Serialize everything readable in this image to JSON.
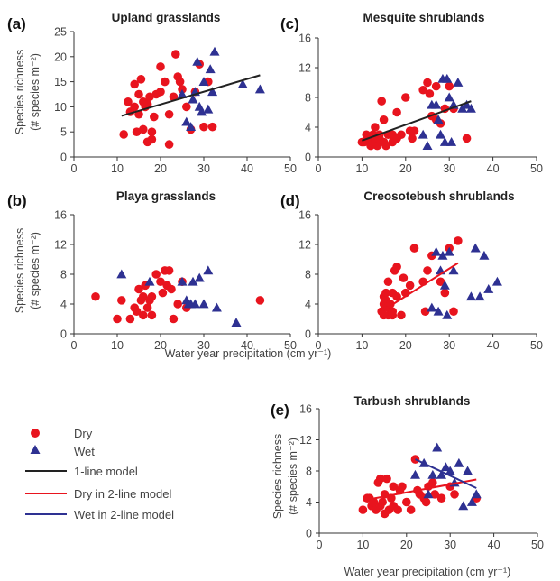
{
  "chart_data": [
    {
      "id": "a",
      "type": "scatter",
      "panel_label": "(a)",
      "title": "Upland grasslands",
      "xlim": [
        0,
        50
      ],
      "ylim": [
        0,
        25
      ],
      "xticks": [
        0,
        10,
        20,
        30,
        40,
        50
      ],
      "yticks": [
        0,
        5,
        10,
        15,
        20,
        25
      ],
      "ylabel_lines": [
        "Species richness",
        "(# species m⁻²)"
      ],
      "xlabel": "",
      "series": [
        {
          "name": "Dry",
          "marker": "circle",
          "color": "#e8141e",
          "x": [
            11.5,
            12.5,
            13,
            14,
            14,
            14.5,
            15,
            15,
            15.5,
            16,
            16,
            16.5,
            17,
            17,
            17.5,
            18,
            18,
            18.5,
            19,
            20,
            20,
            21,
            22,
            22,
            23,
            23.5,
            24,
            24.5,
            25,
            26,
            27,
            28,
            29,
            30,
            31,
            32
          ],
          "y": [
            4.5,
            11,
            9,
            14.5,
            10,
            5,
            12.5,
            8.5,
            15.5,
            11,
            5.5,
            10,
            3,
            10.5,
            12,
            3.5,
            5,
            8,
            12.5,
            13,
            18,
            15,
            2.5,
            8.5,
            12,
            20.5,
            16,
            15,
            13.5,
            10,
            5.5,
            13,
            18.5,
            6,
            15,
            6
          ]
        },
        {
          "name": "Wet",
          "marker": "triangle",
          "color": "#2e3192",
          "x": [
            25,
            26,
            27,
            27.5,
            28,
            28.5,
            29,
            29.5,
            30,
            31,
            31.5,
            32,
            32.5,
            39,
            43
          ],
          "y": [
            12.5,
            7,
            6,
            11.5,
            13,
            19,
            10,
            9,
            15,
            9.5,
            17.5,
            13,
            21,
            14.5,
            13.5
          ]
        },
        {
          "name": "1-line model",
          "type": "line",
          "color": "#222222",
          "x": [
            11,
            43
          ],
          "y": [
            8.2,
            16.3
          ]
        }
      ]
    },
    {
      "id": "c",
      "type": "scatter",
      "panel_label": "(c)",
      "title": "Mesquite shrublands",
      "xlim": [
        0,
        50
      ],
      "ylim": [
        0,
        16
      ],
      "xticks": [
        0,
        10,
        20,
        30,
        40,
        50
      ],
      "yticks": [
        0,
        4,
        8,
        12,
        16
      ],
      "ylabel_lines": [],
      "xlabel": "",
      "series": [
        {
          "name": "Dry",
          "marker": "circle",
          "color": "#e8141e",
          "x": [
            10,
            10.5,
            11,
            11.5,
            12,
            12.5,
            13,
            13,
            13.5,
            14,
            14,
            14.5,
            15,
            15,
            15.5,
            16,
            17,
            17,
            18,
            18,
            19,
            20,
            21,
            21.5,
            22,
            24,
            25,
            25.5,
            26,
            27,
            27,
            28,
            29,
            30,
            31,
            34
          ],
          "y": [
            2,
            2,
            3,
            2.5,
            1.5,
            3,
            2,
            4,
            1.5,
            3,
            2.5,
            7.5,
            2,
            5,
            1.5,
            3,
            2,
            3,
            6,
            2.5,
            3,
            8,
            3.5,
            2.5,
            3.5,
            9,
            10,
            8.5,
            5.5,
            9.5,
            5,
            4.5,
            6.5,
            9.5,
            6.5,
            2.5
          ]
        },
        {
          "name": "Wet",
          "marker": "triangle",
          "color": "#2e3192",
          "x": [
            24,
            25,
            26,
            27,
            27.5,
            28,
            28.5,
            29,
            29.5,
            30,
            30.5,
            31,
            32,
            33,
            34,
            35
          ],
          "y": [
            3,
            1.5,
            7,
            7,
            5,
            3,
            10.5,
            2,
            10.5,
            8,
            2,
            7,
            10,
            6.5,
            7,
            6.5
          ]
        },
        {
          "name": "1-line model",
          "type": "line",
          "color": "#222222",
          "x": [
            10,
            35
          ],
          "y": [
            2.2,
            7.5
          ]
        }
      ]
    },
    {
      "id": "b",
      "type": "scatter",
      "panel_label": "(b)",
      "title": "Playa grasslands",
      "xlim": [
        0,
        50
      ],
      "ylim": [
        0,
        16
      ],
      "xticks": [
        0,
        10,
        20,
        30,
        40,
        50
      ],
      "yticks": [
        0,
        4,
        8,
        12,
        16
      ],
      "ylabel_lines": [
        "Species richness",
        "(# species m⁻²)"
      ],
      "xlabel": "",
      "series": [
        {
          "name": "Dry",
          "marker": "circle",
          "color": "#e8141e",
          "x": [
            5,
            10,
            11,
            13,
            14,
            14.5,
            15,
            15.5,
            16,
            16,
            16.5,
            17,
            17.5,
            18,
            18,
            19,
            20,
            20.5,
            21,
            21.5,
            22,
            22.5,
            23,
            24,
            25,
            26,
            43
          ],
          "y": [
            5,
            2,
            4.5,
            2,
            3.5,
            3,
            6,
            4.5,
            2.5,
            5,
            6.5,
            3.5,
            4.5,
            2.5,
            5,
            8,
            7,
            5.5,
            8.5,
            6.5,
            8.5,
            6,
            2,
            4,
            7,
            3.5,
            4.5
          ]
        },
        {
          "name": "Wet",
          "marker": "triangle",
          "color": "#2e3192",
          "x": [
            11,
            17.5,
            25,
            26,
            26.5,
            27,
            27.5,
            28,
            29,
            30,
            31,
            33,
            37.5
          ],
          "y": [
            8,
            7,
            7,
            4.5,
            4,
            4,
            7,
            4,
            7.5,
            4,
            8.5,
            3.5,
            1.5
          ]
        }
      ]
    },
    {
      "id": "d",
      "type": "scatter",
      "panel_label": "(d)",
      "title": "Creosotebush shrublands",
      "xlim": [
        0,
        50
      ],
      "ylim": [
        0,
        16
      ],
      "xticks": [
        0,
        10,
        20,
        30,
        40,
        50
      ],
      "yticks": [
        0,
        4,
        8,
        12,
        16
      ],
      "ylabel_lines": [],
      "xlabel": "",
      "series": [
        {
          "name": "Dry",
          "marker": "circle",
          "color": "#e8141e",
          "x": [
            14.5,
            15,
            15,
            15,
            15.5,
            15.5,
            16,
            16,
            16,
            16.5,
            17,
            17,
            17,
            17.5,
            18,
            18,
            19,
            19.5,
            20,
            21,
            22,
            24,
            24.5,
            25,
            26,
            28,
            29,
            30,
            31,
            32
          ],
          "y": [
            3,
            4,
            5,
            2.5,
            5.5,
            4.5,
            3.5,
            7,
            2.5,
            4,
            5.5,
            3,
            2.5,
            8.5,
            9,
            5,
            2.5,
            7.5,
            5.5,
            6.5,
            11.5,
            7,
            3,
            8.5,
            10.5,
            7,
            5.5,
            11.5,
            3,
            12.5
          ]
        },
        {
          "name": "Wet",
          "marker": "triangle",
          "color": "#2e3192",
          "x": [
            26,
            27,
            27.5,
            28,
            28.5,
            29,
            29.5,
            30,
            31,
            35,
            36,
            37,
            38,
            39,
            41
          ],
          "y": [
            3.5,
            11,
            3,
            8.5,
            10.5,
            6.5,
            2.5,
            11,
            8.5,
            5,
            11.5,
            5,
            10.5,
            6,
            7
          ]
        },
        {
          "name": "Dry in 2-line model",
          "type": "line",
          "color": "#e8141e",
          "x": [
            15,
            32
          ],
          "y": [
            3.2,
            9.5
          ]
        }
      ]
    },
    {
      "id": "e",
      "type": "scatter",
      "panel_label": "(e)",
      "title": "Tarbush shrublands",
      "xlim": [
        0,
        50
      ],
      "ylim": [
        0,
        16
      ],
      "xticks": [
        0,
        10,
        20,
        30,
        40,
        50
      ],
      "yticks": [
        0,
        4,
        8,
        12,
        16
      ],
      "ylabel_lines": [
        "Species richness",
        "(# species m⁻²)"
      ],
      "xlabel": "Water year precipitation (cm yr⁻¹)",
      "series": [
        {
          "name": "Dry",
          "marker": "circle",
          "color": "#e8141e",
          "x": [
            10,
            11,
            11.5,
            12,
            12.5,
            13,
            13.5,
            14,
            14,
            14.5,
            15,
            15,
            15.5,
            16,
            16.5,
            17,
            17,
            18,
            18.5,
            19,
            20,
            21,
            22,
            22.5,
            23,
            24,
            24.5,
            25,
            26,
            26.5,
            28,
            30,
            31,
            36
          ],
          "y": [
            3,
            4.5,
            4.5,
            3.5,
            4,
            3,
            6.5,
            7,
            3.5,
            4,
            2.5,
            5,
            7,
            3,
            4.5,
            6,
            3.5,
            3,
            5.5,
            6,
            4,
            3,
            9.5,
            5.5,
            5,
            4.5,
            4,
            6,
            6.5,
            5,
            4.5,
            6,
            5,
            4.5
          ]
        },
        {
          "name": "Wet",
          "marker": "triangle",
          "color": "#2e3192",
          "x": [
            22,
            24,
            25,
            26,
            27,
            28,
            29,
            30,
            31,
            32,
            33,
            34,
            35,
            36
          ],
          "y": [
            7.5,
            9,
            5,
            7.5,
            11,
            7.5,
            8.5,
            8,
            6.5,
            9,
            3.5,
            8,
            4,
            5
          ]
        },
        {
          "name": "Dry in 2-line model",
          "type": "line",
          "color": "#e8141e",
          "x": [
            10,
            36
          ],
          "y": [
            4.2,
            6.9
          ]
        },
        {
          "name": "Wet in 2-line model",
          "type": "line",
          "color": "#2e3192",
          "x": [
            22,
            36
          ],
          "y": [
            9.5,
            5.8
          ]
        }
      ]
    }
  ],
  "legend": {
    "placement": "bottom-left",
    "items": [
      {
        "label": "Dry",
        "symbol": "circle",
        "color": "#e8141e"
      },
      {
        "label": "Wet",
        "symbol": "triangle",
        "color": "#2e3192"
      },
      {
        "label": "1-line model",
        "symbol": "line",
        "color": "#222222"
      },
      {
        "label": "Dry in 2-line model",
        "symbol": "line",
        "color": "#e8141e"
      },
      {
        "label": "Wet in 2-line model",
        "symbol": "line",
        "color": "#2e3192"
      }
    ]
  },
  "shared_xlabel": "Water year precipitation (cm yr⁻¹)"
}
